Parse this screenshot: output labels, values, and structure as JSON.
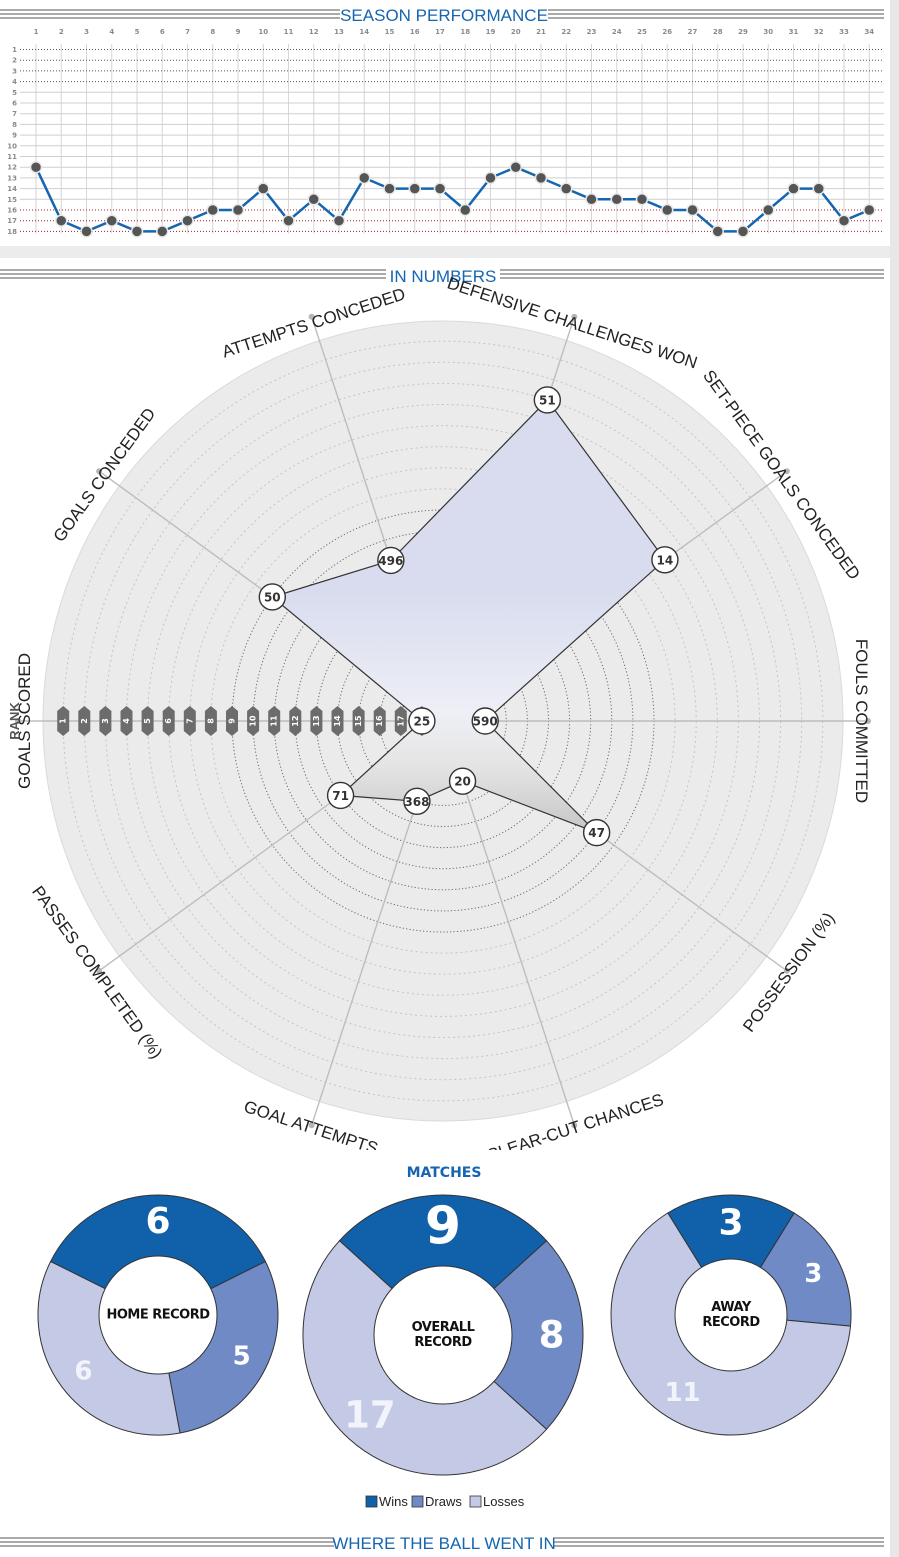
{
  "headers": {
    "season": "SEASON PERFORMANCE",
    "numbers": "IN NUMBERS",
    "matches": "MATCHES",
    "where": "WHERE THE BALL WENT IN"
  },
  "colors": {
    "blue": "#1565b0",
    "wins": "#1160aa",
    "draws": "#6f8ac4",
    "losses": "#c4cae6",
    "marker": "#555555",
    "red_tick": "#b0172a"
  },
  "chart_data": [
    {
      "type": "line",
      "title": "SEASON PERFORMANCE",
      "x": [
        1,
        2,
        3,
        4,
        5,
        6,
        7,
        8,
        9,
        10,
        11,
        12,
        13,
        14,
        15,
        16,
        17,
        18,
        19,
        20,
        21,
        22,
        23,
        24,
        25,
        26,
        27,
        28,
        29,
        30,
        31,
        32,
        33,
        34
      ],
      "y_ticks": [
        1,
        2,
        3,
        4,
        5,
        6,
        7,
        8,
        9,
        10,
        11,
        12,
        13,
        14,
        15,
        16,
        17,
        18
      ],
      "highlighted_y_ticks": [
        16,
        17,
        18
      ],
      "ylim": [
        1,
        18
      ],
      "y_inverted": true,
      "grid": true,
      "series": [
        {
          "values": [
            12,
            17,
            18,
            17,
            18,
            18,
            17,
            16,
            16,
            14,
            17,
            15,
            17,
            13,
            14,
            14,
            14,
            16,
            13,
            12,
            13,
            14,
            15,
            15,
            15,
            16,
            16,
            18,
            18,
            16,
            14,
            14,
            17,
            16
          ]
        }
      ]
    },
    {
      "type": "radar",
      "title": "IN NUMBERS",
      "rank_label": "RANK",
      "rank_ticks": [
        1,
        2,
        3,
        4,
        5,
        6,
        7,
        8,
        9,
        10,
        11,
        12,
        13,
        14,
        15,
        16,
        17,
        18
      ],
      "axes": [
        "GOAL ATTEMPTS",
        "CLEAR-CUT CHANCES",
        "POSSESSION (%)",
        "FOULS COMMITTED",
        "SET-PIECE GOALS CONCEDED",
        "DEFENSIVE CHALLENGES WON",
        "ATTEMPTS CONCEDED",
        "GOALS CONCEDED",
        "GOALS SCORED",
        "PASSES COMPLETED (%)"
      ],
      "values": [
        "368",
        "20",
        "47",
        "590",
        "14",
        "51",
        "496",
        "50",
        "25",
        "71"
      ],
      "ranks": [
        15,
        16,
        10,
        17,
        6,
        3,
        11,
        9,
        18,
        13
      ]
    },
    {
      "type": "pie",
      "title": "HOME RECORD",
      "categories": [
        "Wins",
        "Draws",
        "Losses"
      ],
      "values": [
        6,
        5,
        6
      ]
    },
    {
      "type": "pie",
      "title": "OVERALL RECORD",
      "categories": [
        "Wins",
        "Draws",
        "Losses"
      ],
      "values": [
        9,
        8,
        17
      ]
    },
    {
      "type": "pie",
      "title": "AWAY RECORD",
      "categories": [
        "Wins",
        "Draws",
        "Losses"
      ],
      "values": [
        3,
        3,
        11
      ]
    }
  ],
  "donut_titles": [
    [
      "HOME RECORD"
    ],
    [
      "OVERALL",
      "RECORD"
    ],
    [
      "AWAY",
      "RECORD"
    ]
  ],
  "legend": [
    "Wins",
    "Draws",
    "Losses"
  ]
}
